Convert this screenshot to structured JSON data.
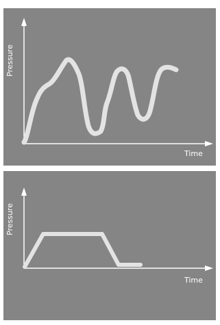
{
  "colors": {
    "panel": "#858585",
    "axis": "#ffffff",
    "curve": "#e3e3e3",
    "page": "#ffffff"
  },
  "charts": [
    {
      "ylabel": "Pressure",
      "xlabel": "Time",
      "curve_shape": "irregular oscillating wave"
    },
    {
      "ylabel": "Pressure",
      "xlabel": "Time",
      "curve_shape": "trapezoidal pulse"
    }
  ]
}
